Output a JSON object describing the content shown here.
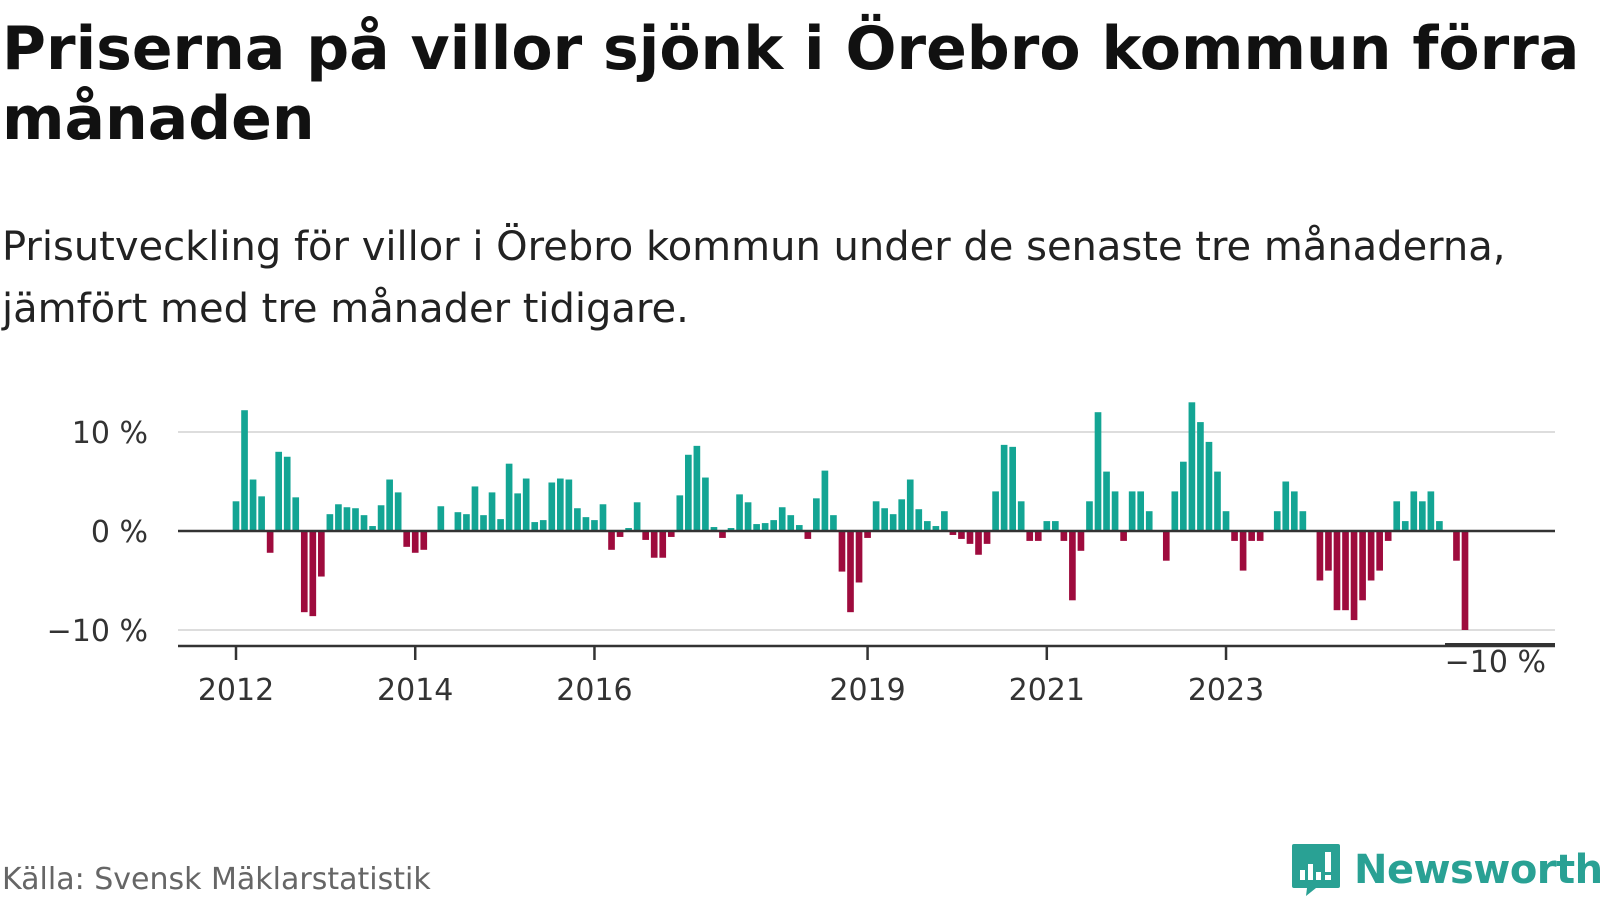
{
  "title": "Priserna på villor sjönk i Örebro kommun förra månaden",
  "subtitle": "Prisutveckling för villor i Örebro kommun under de senaste tre månaderna, jämfört med tre månader tidigare.",
  "source": "Källa: Svensk Mäklarstatistik",
  "brand": {
    "name": "Newsworthy",
    "icon": "newsworthy-logo-icon"
  },
  "colors": {
    "positive": "#13a594",
    "negative": "#9e0b3d",
    "grid": "#dddddd",
    "zero": "#333333"
  },
  "chart_data": {
    "type": "bar",
    "ylim": [
      -11,
      13
    ],
    "y_ticks": [
      {
        "value": 10,
        "label": "10 %"
      },
      {
        "value": 0,
        "label": "0 %"
      },
      {
        "value": -10,
        "label": "−10 %"
      }
    ],
    "x_ticks": [
      {
        "index": 0,
        "label": "2012"
      },
      {
        "index": 21,
        "label": "2014"
      },
      {
        "index": 42,
        "label": "2016"
      },
      {
        "index": 74,
        "label": "2019"
      },
      {
        "index": 95,
        "label": "2021"
      },
      {
        "index": 116,
        "label": "2023"
      }
    ],
    "last_value_label": "−10 %",
    "grid": true,
    "values": [
      3,
      12.2,
      5.2,
      3.5,
      -2.2,
      8,
      7.5,
      3.4,
      -8.2,
      -8.6,
      -4.6,
      1.7,
      2.7,
      2.4,
      2.3,
      1.6,
      0.5,
      2.6,
      5.2,
      3.9,
      -1.6,
      -2.2,
      -1.9,
      0.1,
      2.5,
      0.1,
      1.9,
      1.7,
      4.5,
      1.6,
      3.9,
      1.2,
      6.8,
      3.8,
      5.3,
      0.9,
      1.1,
      4.9,
      5.3,
      5.2,
      2.3,
      1.4,
      1.1,
      2.7,
      -1.9,
      -0.6,
      0.3,
      2.9,
      -0.9,
      -2.7,
      -2.7,
      -0.6,
      3.6,
      7.7,
      8.6,
      5.4,
      0.4,
      -0.7,
      0.3,
      3.7,
      2.9,
      0.7,
      0.8,
      1.1,
      2.4,
      1.6,
      0.6,
      -0.8,
      3.3,
      6.1,
      1.6,
      -4.1,
      -8.2,
      -5.2,
      -0.7,
      3,
      2.3,
      1.7,
      3.2,
      5.2,
      2.2,
      1,
      0.5,
      2,
      -0.4,
      -0.8,
      -1.3,
      -2.4,
      -1.3,
      4,
      8.7,
      8.5,
      3,
      -1,
      -1,
      1,
      1,
      -1,
      -7,
      -2,
      3,
      12,
      6,
      4,
      -1,
      4,
      4,
      2,
      0,
      -3,
      4,
      7,
      13,
      11,
      9,
      6,
      2,
      -1,
      -4,
      -1,
      -1,
      0,
      2,
      5,
      4,
      2,
      0,
      -5,
      -4,
      -8,
      -8,
      -9,
      -7,
      -5,
      -4,
      -1,
      3,
      1,
      4,
      3,
      4,
      1,
      0,
      -3,
      -10
    ]
  }
}
